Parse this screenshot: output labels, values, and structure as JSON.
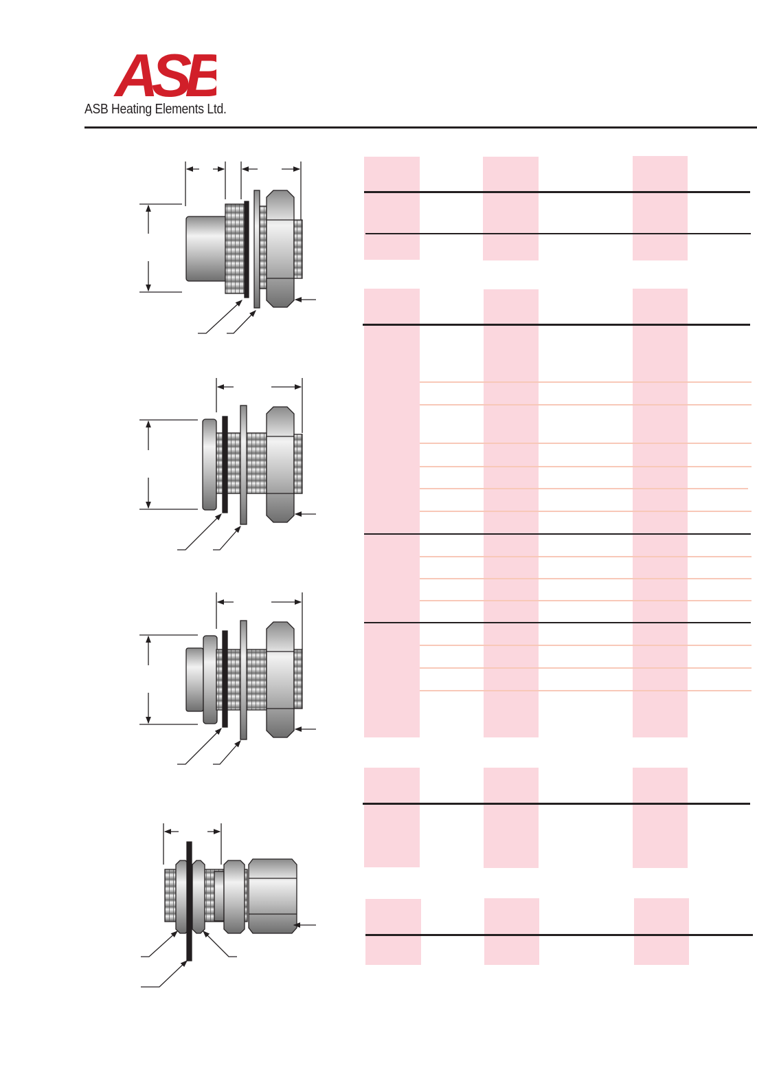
{
  "header": {
    "logo_text": "ASB",
    "company_name": "ASB Heating Elements Ltd."
  },
  "colors": {
    "brand_red": "#d11f29",
    "table_column_pink": "#fbd7de",
    "row_divider_salmon": "#f8c8b8",
    "rule_black": "#231f20"
  },
  "figures": [
    {
      "icon": "bulkhead-fitting-flanged-icon"
    },
    {
      "icon": "bulkhead-fitting-threaded-flange-icon"
    },
    {
      "icon": "bulkhead-fitting-threaded-boss-icon"
    },
    {
      "icon": "compression-fitting-through-wall-icon"
    }
  ]
}
